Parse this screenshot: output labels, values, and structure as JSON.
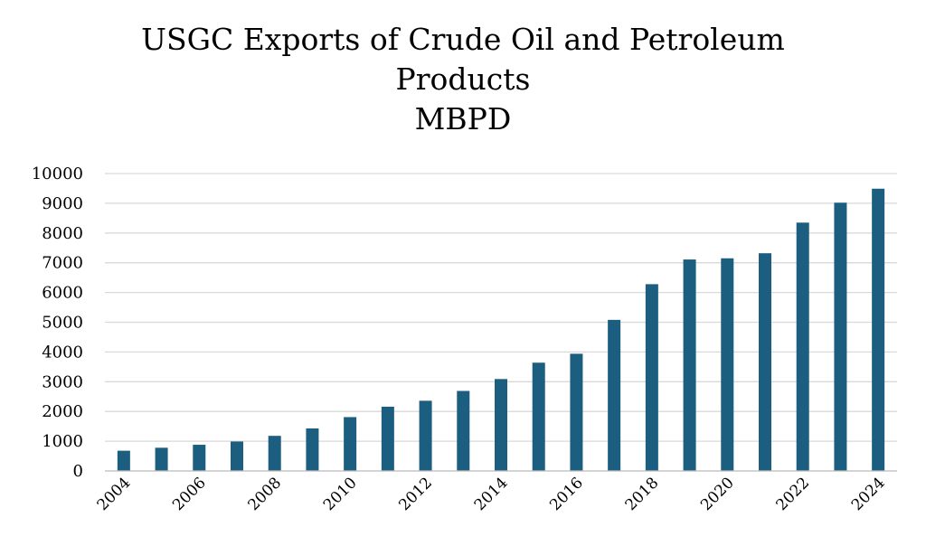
{
  "chart_data": {
    "type": "bar",
    "title_lines": [
      "USGC Exports of Crude Oil and Petroleum",
      "Products",
      "MBPD"
    ],
    "xlabel": "",
    "ylabel": "",
    "categories": [
      "2004",
      "2005",
      "2006",
      "2007",
      "2008",
      "2009",
      "2010",
      "2011",
      "2012",
      "2013",
      "2014",
      "2015",
      "2016",
      "2017",
      "2018",
      "2019",
      "2020",
      "2021",
      "2022",
      "2023",
      "2024"
    ],
    "x_tick_labels": [
      "2004",
      "2006",
      "2008",
      "2010",
      "2012",
      "2014",
      "2016",
      "2018",
      "2020",
      "2022",
      "2024"
    ],
    "y_tick_labels": [
      "0",
      "1000",
      "2000",
      "3000",
      "4000",
      "5000",
      "6000",
      "7000",
      "8000",
      "9000",
      "10000"
    ],
    "values": [
      680,
      780,
      880,
      990,
      1180,
      1430,
      1810,
      2160,
      2360,
      2690,
      3090,
      3640,
      3940,
      5080,
      6280,
      7110,
      7150,
      7320,
      8350,
      9020,
      9490
    ],
    "ylim": [
      0,
      10000
    ],
    "grid": true,
    "legend": "none",
    "bar_color": "#1b5e80",
    "grid_color": "#d9d9d9"
  }
}
